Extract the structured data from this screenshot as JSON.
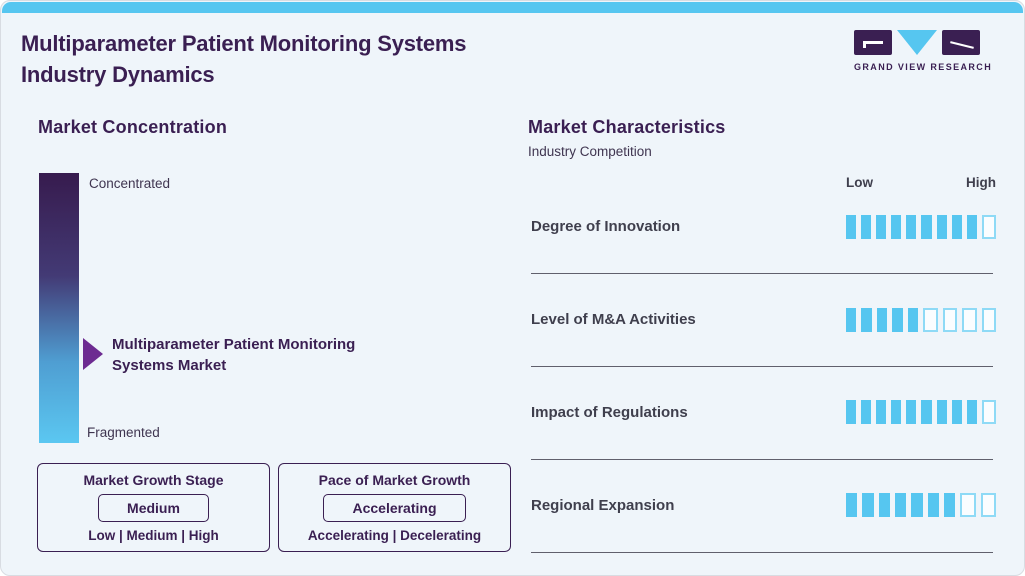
{
  "page": {
    "title_line1": "Multiparameter Patient Monitoring Systems",
    "title_line2": "Industry Dynamics",
    "logo_text": "GRAND VIEW RESEARCH"
  },
  "market_concentration": {
    "heading": "Market Concentration",
    "top_label": "Concentrated",
    "bottom_label": "Fragmented",
    "marker_line1": "Multiparameter Patient Monitoring",
    "marker_line2": "Systems Market",
    "growth_stage": {
      "title": "Market Growth Stage",
      "value": "Medium",
      "options": "Low | Medium | High"
    },
    "growth_pace": {
      "title": "Pace of Market Growth",
      "value": "Accelerating",
      "options": "Accelerating | Decelerating"
    }
  },
  "market_characteristics": {
    "heading": "Market Characteristics",
    "subheading": "Industry Competition",
    "scale_low": "Low",
    "scale_high": "High",
    "rows": [
      {
        "label": "Degree of Innovation",
        "filled": 9,
        "total": 10
      },
      {
        "label": "Level of M&A Activities",
        "filled": 5,
        "total": 9
      },
      {
        "label": "Impact of Regulations",
        "filled": 9,
        "total": 10
      },
      {
        "label": "Regional Expansion",
        "filled": 7,
        "total": 9
      }
    ]
  },
  "colors": {
    "accent_blue": "#56c6f0",
    "brand_purple": "#3a1f52",
    "arrow_purple": "#6d2b91",
    "text_slate": "#3f3f4d",
    "background": "#eff5fa"
  },
  "chart_data": [
    {
      "type": "bar",
      "title": "Market Characteristics - Industry Competition",
      "categories": [
        "Degree of Innovation",
        "Level of M&A Activities",
        "Impact of Regulations",
        "Regional Expansion"
      ],
      "series": [
        {
          "name": "filled_segments",
          "values": [
            9,
            5,
            9,
            7
          ]
        },
        {
          "name": "total_segments",
          "values": [
            10,
            9,
            10,
            9
          ]
        }
      ],
      "xlabel": "",
      "ylabel": "",
      "scale_labels": [
        "Low",
        "High"
      ],
      "legend_position": "none"
    },
    {
      "type": "heatmap",
      "title": "Market Concentration",
      "categories": [
        "Concentrated",
        "Fragmented"
      ],
      "values": [
        "gradient scale marker"
      ],
      "annotations": [
        "Multiparameter Patient Monitoring Systems Market positioned mid-scale"
      ],
      "extra": {
        "Market Growth Stage": "Medium",
        "Pace of Market Growth": "Accelerating"
      }
    }
  ]
}
